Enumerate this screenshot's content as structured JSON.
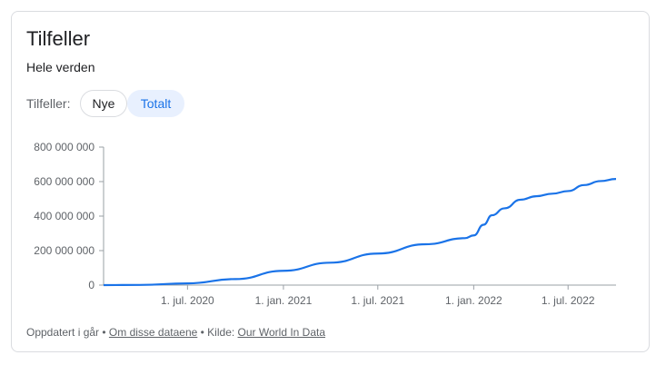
{
  "card": {
    "title": "Tilfeller",
    "subtitle": "Hele verden",
    "filter_label": "Tilfeller:",
    "filter_options": [
      "Nye",
      "Totalt"
    ],
    "selected_filter": "Totalt"
  },
  "footer": {
    "updated": "Oppdatert i går",
    "sep1": " • ",
    "about_link": "Om disse dataene",
    "source_label": " • Kilde: ",
    "source_link": "Our World In Data"
  },
  "colors": {
    "line": "#1a73e8",
    "chip_active_bg": "#e8f0fe"
  },
  "chart_data": {
    "type": "line",
    "title": "",
    "xlabel": "",
    "ylabel": "",
    "ylim": [
      0,
      800000000
    ],
    "xlim": [
      "2020-01-22",
      "2022-10-01"
    ],
    "yticks": [
      0,
      200000000,
      400000000,
      600000000,
      800000000
    ],
    "ytick_labels": [
      "0",
      "200 000 000",
      "400 000 000",
      "600 000 000",
      "800 000 000"
    ],
    "xticks": [
      "2020-07-01",
      "2021-01-01",
      "2021-07-01",
      "2022-01-01",
      "2022-07-01"
    ],
    "xtick_labels": [
      "1. jul. 2020",
      "1. jan. 2021",
      "1. jul. 2021",
      "1. jan. 2022",
      "1. jul. 2022"
    ],
    "grid": false,
    "series": [
      {
        "x": [
          "2020-01-22",
          "2020-04-01",
          "2020-07-01",
          "2020-10-01",
          "2021-01-01",
          "2021-04-01",
          "2021-07-01",
          "2021-10-01",
          "2021-12-15",
          "2022-01-01",
          "2022-01-20",
          "2022-02-05",
          "2022-03-01",
          "2022-04-01",
          "2022-05-01",
          "2022-06-01",
          "2022-07-01",
          "2022-08-01",
          "2022-09-01",
          "2022-10-01"
        ],
        "values": [
          0,
          1000000,
          10000000,
          35000000,
          83000000,
          130000000,
          183000000,
          237000000,
          272000000,
          288000000,
          350000000,
          405000000,
          445000000,
          495000000,
          515000000,
          530000000,
          545000000,
          580000000,
          603000000,
          615000000
        ]
      }
    ]
  }
}
